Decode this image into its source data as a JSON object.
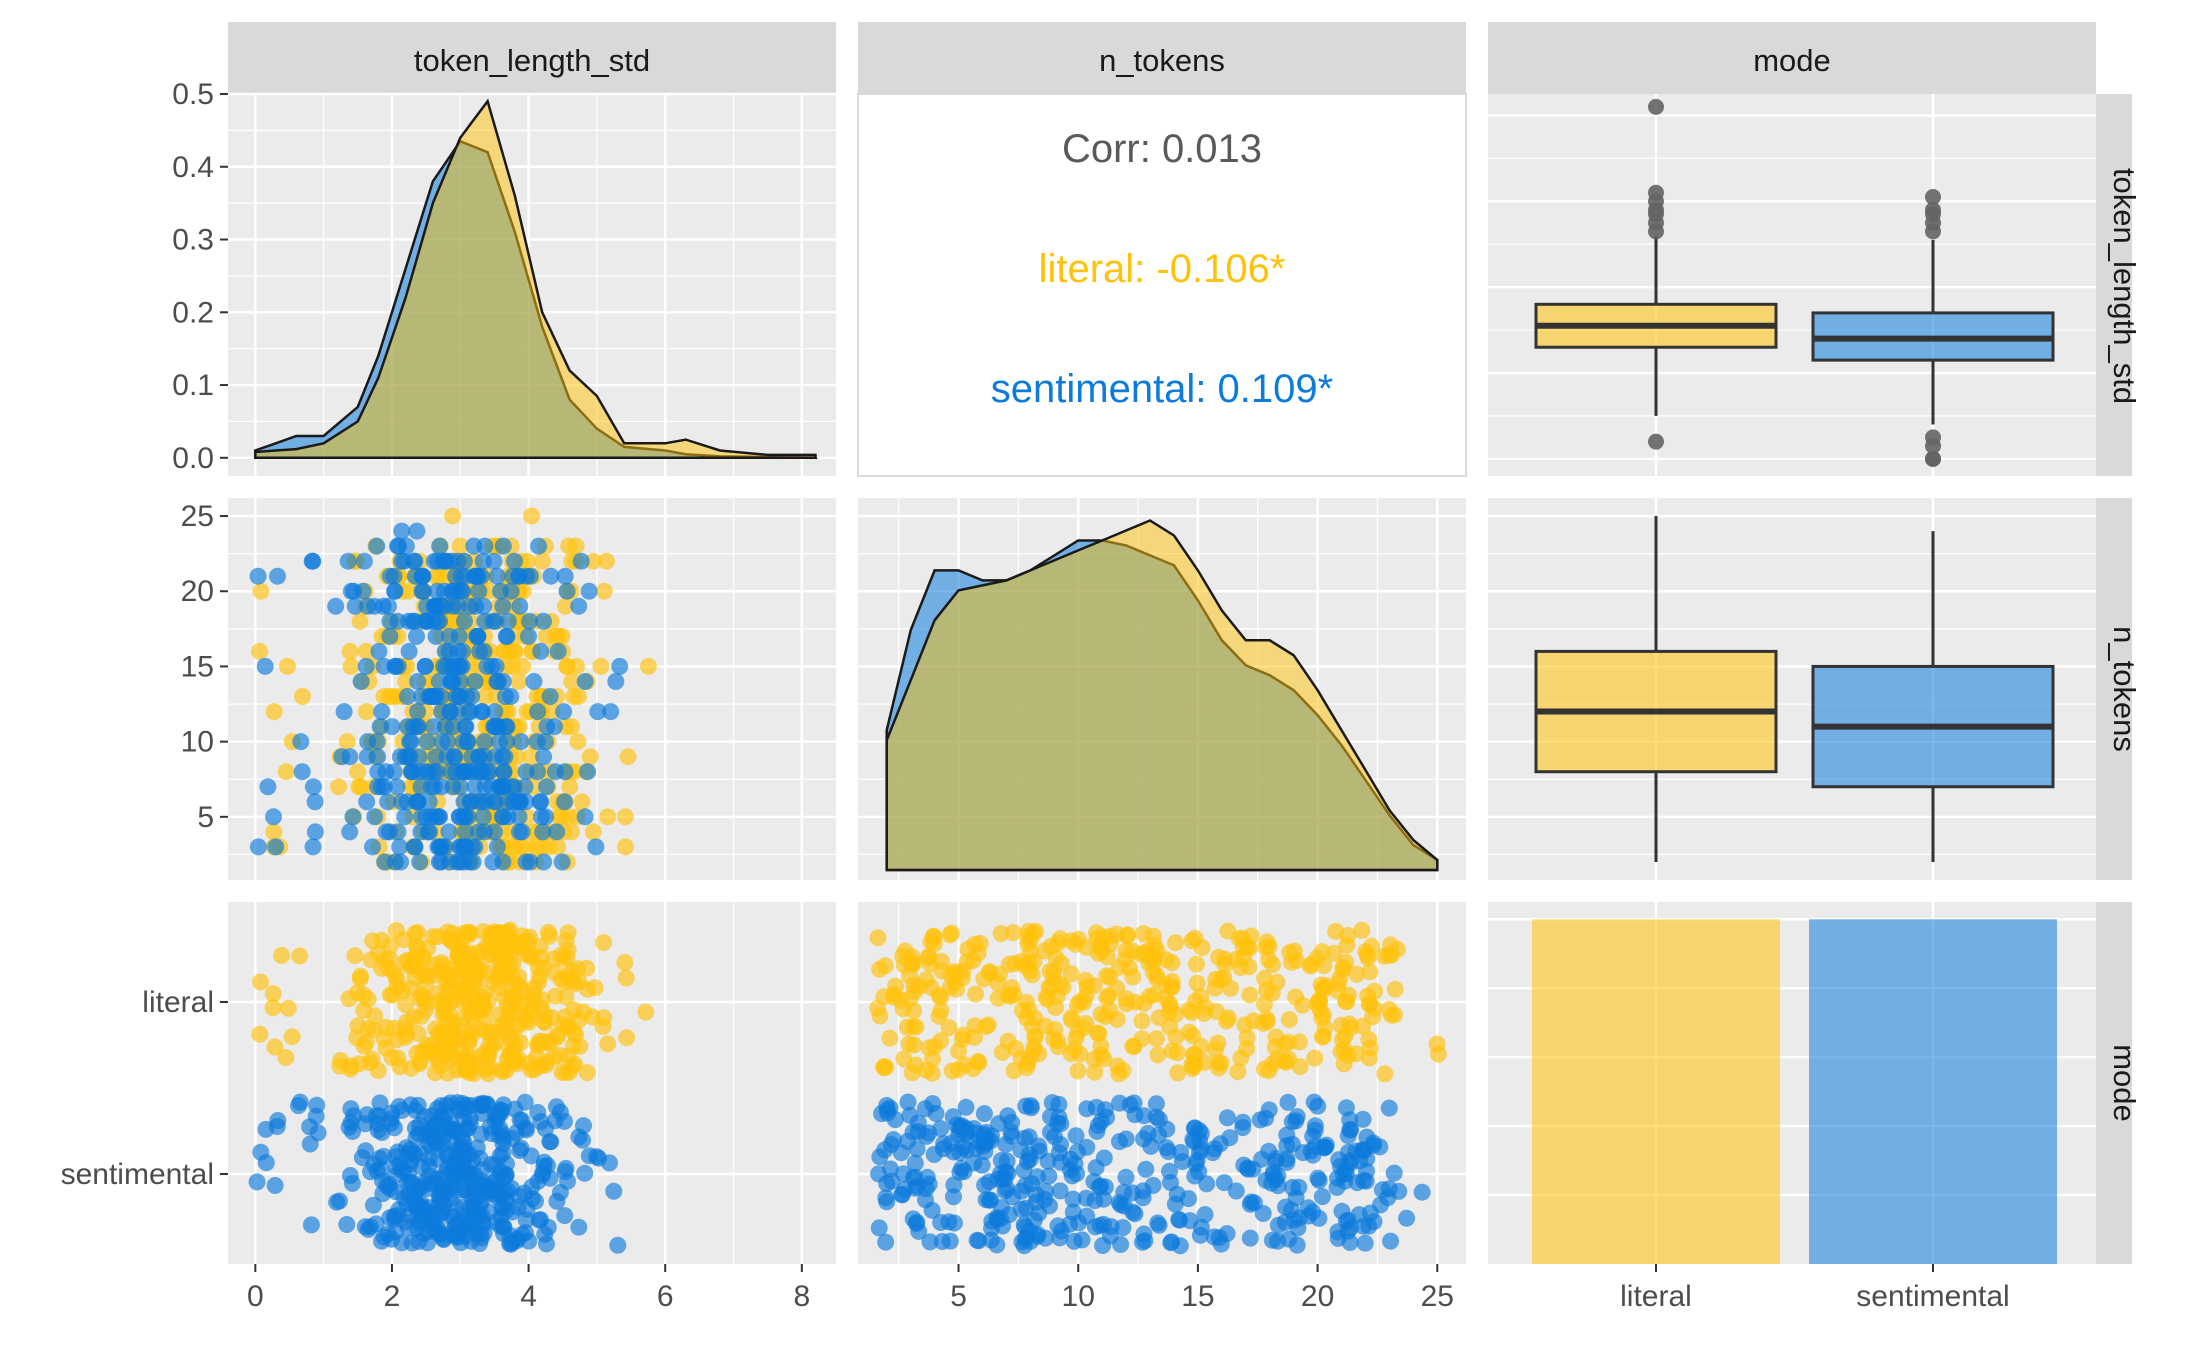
{
  "chart_data": {
    "type": "pairs",
    "variables": [
      "token_length_std",
      "n_tokens",
      "mode"
    ],
    "groups": [
      {
        "name": "literal",
        "color": "#FFC20A"
      },
      {
        "name": "sentimental",
        "color": "#0C7BDC"
      }
    ],
    "neutral_color": "#646464",
    "panel_background": "#EBEBEB",
    "strip_background": "#D9D9D9",
    "axes": {
      "token_length_std": {
        "range": [
          -0.4,
          8.5
        ],
        "ticks": [
          0,
          2,
          4,
          6,
          8
        ],
        "tick_labels": [
          "0",
          "2",
          "4",
          "6",
          "8"
        ]
      },
      "n_tokens": {
        "range": [
          0.8,
          26.2
        ],
        "ticks": [
          5,
          10,
          15,
          20,
          25
        ],
        "tick_labels": [
          "5",
          "10",
          "15",
          "20",
          "25"
        ]
      },
      "mode": {
        "categories": [
          "literal",
          "sentimental"
        ]
      },
      "density_y": {
        "range": [
          -0.025,
          0.5
        ],
        "ticks": [
          0.0,
          0.1,
          0.2,
          0.3,
          0.4,
          0.5
        ],
        "tick_labels": [
          "0.0",
          "0.1",
          "0.2",
          "0.3",
          "0.4",
          "0.5"
        ]
      }
    },
    "correlation": {
      "overall_label": "Corr: 0.013",
      "by_group": [
        {
          "group": "literal",
          "label": "literal: -0.106*"
        },
        {
          "group": "sentimental",
          "label": "sentimental: 0.109*"
        }
      ]
    },
    "density_token_length_std": {
      "x": [
        0,
        0.3,
        0.6,
        1.0,
        1.5,
        1.8,
        2.2,
        2.6,
        3.0,
        3.4,
        3.8,
        4.2,
        4.6,
        5.0,
        5.4,
        6.0,
        6.3,
        6.8,
        7.5,
        8.2
      ],
      "literal": [
        0.008,
        0.01,
        0.012,
        0.02,
        0.05,
        0.11,
        0.22,
        0.35,
        0.44,
        0.49,
        0.36,
        0.2,
        0.12,
        0.085,
        0.02,
        0.02,
        0.025,
        0.01,
        0.004,
        0.004
      ],
      "sentimental": [
        0.01,
        0.02,
        0.03,
        0.03,
        0.07,
        0.14,
        0.26,
        0.38,
        0.435,
        0.42,
        0.31,
        0.18,
        0.08,
        0.04,
        0.015,
        0.01,
        0.005,
        0.002,
        0.001,
        0.0
      ]
    },
    "density_n_tokens": {
      "x": [
        2,
        3,
        4,
        5,
        6,
        7,
        8,
        9,
        10,
        11,
        12,
        13,
        14,
        15,
        16,
        17,
        18,
        19,
        20,
        21,
        22,
        23,
        24,
        25
      ],
      "literal": [
        0.026,
        0.038,
        0.05,
        0.056,
        0.057,
        0.058,
        0.06,
        0.062,
        0.064,
        0.066,
        0.068,
        0.07,
        0.067,
        0.06,
        0.052,
        0.046,
        0.046,
        0.043,
        0.036,
        0.028,
        0.02,
        0.012,
        0.006,
        0.002
      ],
      "sentimental": [
        0.028,
        0.048,
        0.06,
        0.06,
        0.058,
        0.058,
        0.06,
        0.063,
        0.066,
        0.066,
        0.065,
        0.063,
        0.061,
        0.054,
        0.046,
        0.041,
        0.039,
        0.036,
        0.031,
        0.025,
        0.018,
        0.011,
        0.005,
        0.002
      ]
    },
    "boxplots_token_length_std": [
      {
        "group": "literal",
        "lower_whisker": 1.0,
        "q1": 2.6,
        "median": 3.1,
        "q3": 3.6,
        "upper_whisker": 5.2,
        "outliers": [
          0.4,
          5.3,
          5.5,
          5.7,
          5.8,
          6.0,
          6.2,
          8.2
        ]
      },
      {
        "group": "sentimental",
        "lower_whisker": 0.8,
        "q1": 2.3,
        "median": 2.8,
        "q3": 3.4,
        "upper_whisker": 5.1,
        "outliers": [
          0.0,
          0.0,
          0.3,
          0.5,
          5.3,
          5.5,
          5.7,
          5.8,
          6.1
        ]
      }
    ],
    "boxplots_n_tokens": [
      {
        "group": "literal",
        "lower_whisker": 2,
        "q1": 8,
        "median": 12,
        "q3": 16,
        "upper_whisker": 25
      },
      {
        "group": "sentimental",
        "lower_whisker": 2,
        "q1": 7,
        "median": 11,
        "q3": 15,
        "upper_whisker": 24
      }
    ],
    "bar_counts": {
      "categories": [
        "literal",
        "sentimental"
      ],
      "values": [
        500,
        500
      ]
    },
    "scatter_note": "Jittered scatter of token_length_std vs n_tokens (and vs mode) coloured by mode; points cluster at token_length_std 1.5–5 and n_tokens 2–25."
  }
}
